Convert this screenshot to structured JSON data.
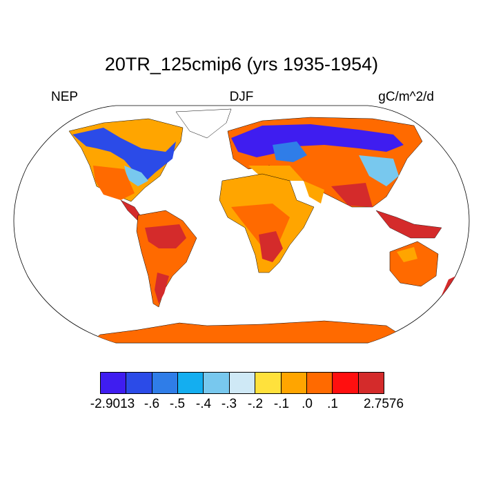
{
  "title": "20TR_125cmip6 (yrs 1935-1954)",
  "left_label": "NEP",
  "center_label": "DJF",
  "right_label": "gC/m^2/d",
  "colorbar": {
    "colors": [
      "#3f1df0",
      "#2b4be8",
      "#2f7de8",
      "#14aef0",
      "#78c8ee",
      "#cfe9f6",
      "#ffe13c",
      "#ffa500",
      "#ff6a00",
      "#ff0f0f",
      "#d42b2b"
    ],
    "tick_labels": [
      "-2.9013",
      "-.6",
      "-.5",
      "-.4",
      "-.3",
      "-.2",
      "-.1",
      ".0",
      ".1",
      "2.7576"
    ]
  },
  "map": {
    "projection": "robinson",
    "ocean_color": "#ffffff",
    "land_base_color": "#ff6a00",
    "coastline_color": "#000000"
  }
}
